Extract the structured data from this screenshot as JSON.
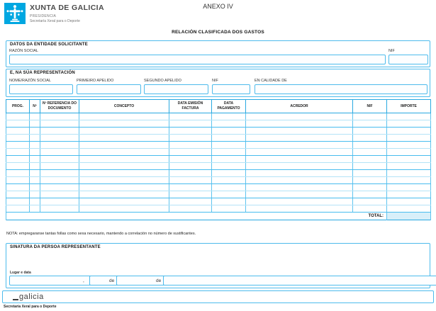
{
  "page": {
    "anexo_label": "ANEXO IV",
    "title": "RELACIÓN CLASIFICADA DOS GASTOS"
  },
  "header": {
    "org_name": "XUNTA DE GALICIA",
    "dept_line1": "PRESIDENCIA",
    "dept_line2": "Secretaría Xeral para o Deporte",
    "logo_icon": "xunta-cruceiro-emblem"
  },
  "entidade": {
    "heading": "DATOS DA ENTIDADE SOLICITANTE",
    "razon_social_label": "RAZÓN SOCIAL",
    "razon_social_value": "",
    "nif_label": "NIF",
    "nif_value": ""
  },
  "representacion": {
    "heading": "E, NA SÚA REPRESENTACIÓN",
    "fields": [
      {
        "label": "NOME/RAZÓN SOCIAL",
        "value": ""
      },
      {
        "label": "PRIMEIRO APELIDO",
        "value": ""
      },
      {
        "label": "SEGUNDO APELIDO",
        "value": ""
      },
      {
        "label": "NIF",
        "value": ""
      },
      {
        "label": "EN CALIDADE DE",
        "value": ""
      }
    ]
  },
  "expenses_table": {
    "columns": [
      "PROG.",
      "Nº",
      "Nº REFERENCIA DO DOCUMENTO",
      "CONCEPTO",
      "DATA EMISIÓN FACTURA",
      "DATA PAGAMENTO",
      "ACREDOR",
      "NIF",
      "IMPORTE"
    ],
    "row_count": 14,
    "rows_are_empty": true,
    "total_label": "TOTAL:",
    "total_value": ""
  },
  "nota": "NOTA: empregaranse tantas follas como sexa necesario, mantendo a correlación no número de xustificantes.",
  "sinatura": {
    "heading": "SINATURA DA PERSOA REPRESENTANTE",
    "lugar_data_label": "Lugar e data",
    "lugar_value": "",
    "separator_comma": ",",
    "de_word_1": "de",
    "de_word_2": "de",
    "day_value": "",
    "month_value": "",
    "year_value": ""
  },
  "footer": {
    "logo_text": "galicia",
    "dept_text": "Secretaría Xeral para o Deporte"
  },
  "colors": {
    "brand_blue": "#00a7e1",
    "border_blue": "#29a9e1",
    "field_border": "#4dbbec",
    "row_line_light": "#b4e3f7",
    "row_line_strong": "#49bcee",
    "total_bg": "#d8eff9"
  }
}
